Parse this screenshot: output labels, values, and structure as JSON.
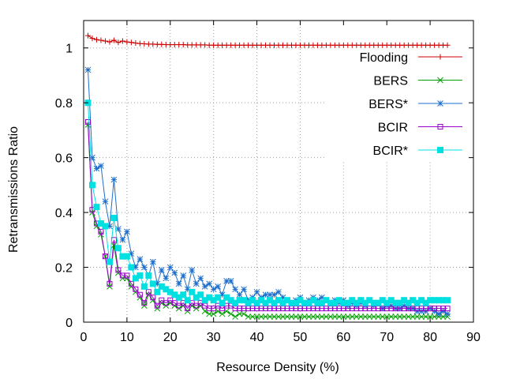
{
  "chart_data": {
    "type": "line",
    "xlabel": "Resource Density (%)",
    "ylabel": "Retransmissions Ratio",
    "xlim": [
      0,
      90
    ],
    "ylim": [
      0,
      1.1
    ],
    "xticks": [
      0,
      10,
      20,
      30,
      40,
      50,
      60,
      70,
      80,
      90
    ],
    "yticks": [
      0,
      0.2,
      0.4,
      0.6,
      0.8,
      1
    ],
    "ytick_labels": [
      "0",
      "0.2",
      "0.4",
      "0.6",
      "0.8",
      "1"
    ],
    "grid": true,
    "legend_position": "top-right",
    "x": [
      1,
      2,
      3,
      4,
      5,
      6,
      7,
      8,
      9,
      10,
      11,
      12,
      13,
      14,
      15,
      16,
      17,
      18,
      19,
      20,
      21,
      22,
      23,
      24,
      25,
      26,
      27,
      28,
      29,
      30,
      31,
      32,
      33,
      34,
      35,
      36,
      37,
      38,
      39,
      40,
      41,
      42,
      43,
      44,
      45,
      46,
      47,
      48,
      49,
      50,
      51,
      52,
      53,
      54,
      55,
      56,
      57,
      58,
      59,
      60,
      61,
      62,
      63,
      64,
      65,
      66,
      67,
      68,
      69,
      70,
      71,
      72,
      73,
      74,
      75,
      76,
      77,
      78,
      79,
      80,
      81,
      82,
      83,
      84
    ],
    "series": [
      {
        "name": "Flooding",
        "color": "#cc0000",
        "marker": "plus",
        "values": [
          1.045,
          1.035,
          1.03,
          1.028,
          1.025,
          1.022,
          1.028,
          1.02,
          1.025,
          1.022,
          1.02,
          1.018,
          1.016,
          1.015,
          1.014,
          1.014,
          1.013,
          1.013,
          1.012,
          1.012,
          1.012,
          1.012,
          1.012,
          1.011,
          1.011,
          1.011,
          1.011,
          1.011,
          1.01,
          1.01,
          1.01,
          1.01,
          1.01,
          1.01,
          1.01,
          1.01,
          1.01,
          1.01,
          1.01,
          1.01,
          1.01,
          1.01,
          1.01,
          1.01,
          1.01,
          1.01,
          1.01,
          1.01,
          1.01,
          1.01,
          1.01,
          1.01,
          1.01,
          1.01,
          1.01,
          1.01,
          1.01,
          1.01,
          1.01,
          1.01,
          1.01,
          1.01,
          1.01,
          1.01,
          1.01,
          1.01,
          1.01,
          1.01,
          1.01,
          1.01,
          1.01,
          1.01,
          1.01,
          1.01,
          1.01,
          1.01,
          1.01,
          1.01,
          1.01,
          1.01,
          1.01,
          1.01,
          1.01,
          1.01
        ]
      },
      {
        "name": "BERS",
        "color": "#00a000",
        "marker": "x",
        "values": [
          0.72,
          0.4,
          0.35,
          0.32,
          0.24,
          0.13,
          0.28,
          0.18,
          0.16,
          0.16,
          0.13,
          0.11,
          0.09,
          0.06,
          0.1,
          0.08,
          0.05,
          0.07,
          0.06,
          0.07,
          0.06,
          0.05,
          0.06,
          0.04,
          0.06,
          0.05,
          0.06,
          0.04,
          0.03,
          0.03,
          0.04,
          0.03,
          0.04,
          0.03,
          0.02,
          0.03,
          0.03,
          0.02,
          0.02,
          0.02,
          0.02,
          0.02,
          0.02,
          0.02,
          0.02,
          0.02,
          0.02,
          0.02,
          0.02,
          0.02,
          0.02,
          0.02,
          0.02,
          0.02,
          0.02,
          0.02,
          0.02,
          0.02,
          0.02,
          0.02,
          0.02,
          0.02,
          0.02,
          0.02,
          0.02,
          0.02,
          0.02,
          0.02,
          0.02,
          0.02,
          0.02,
          0.02,
          0.02,
          0.02,
          0.02,
          0.02,
          0.02,
          0.02,
          0.02,
          0.02,
          0.02,
          0.02,
          0.02,
          0.02
        ]
      },
      {
        "name": "BERS*",
        "color": "#1e6ecc",
        "marker": "star",
        "values": [
          0.92,
          0.6,
          0.56,
          0.57,
          0.44,
          0.35,
          0.52,
          0.34,
          0.3,
          0.33,
          0.25,
          0.2,
          0.23,
          0.2,
          0.17,
          0.22,
          0.14,
          0.19,
          0.16,
          0.2,
          0.18,
          0.14,
          0.17,
          0.12,
          0.19,
          0.14,
          0.16,
          0.13,
          0.14,
          0.12,
          0.13,
          0.1,
          0.15,
          0.15,
          0.12,
          0.1,
          0.12,
          0.08,
          0.09,
          0.11,
          0.09,
          0.1,
          0.1,
          0.1,
          0.11,
          0.09,
          0.08,
          0.07,
          0.08,
          0.09,
          0.07,
          0.08,
          0.09,
          0.08,
          0.09,
          0.08,
          0.07,
          0.08,
          0.07,
          0.08,
          0.06,
          0.07,
          0.06,
          0.07,
          0.06,
          0.08,
          0.06,
          0.07,
          0.05,
          0.06,
          0.06,
          0.05,
          0.05,
          0.06,
          0.05,
          0.05,
          0.04,
          0.04,
          0.04,
          0.05,
          0.04,
          0.03,
          0.04,
          0.03
        ]
      },
      {
        "name": "BCIR",
        "color": "#9900cc",
        "marker": "square-open",
        "values": [
          0.73,
          0.41,
          0.36,
          0.33,
          0.24,
          0.14,
          0.3,
          0.19,
          0.17,
          0.17,
          0.14,
          0.12,
          0.1,
          0.07,
          0.11,
          0.09,
          0.06,
          0.08,
          0.07,
          0.08,
          0.07,
          0.06,
          0.07,
          0.05,
          0.07,
          0.06,
          0.07,
          0.06,
          0.05,
          0.05,
          0.06,
          0.05,
          0.06,
          0.06,
          0.05,
          0.05,
          0.05,
          0.05,
          0.05,
          0.05,
          0.05,
          0.05,
          0.05,
          0.05,
          0.05,
          0.05,
          0.05,
          0.05,
          0.05,
          0.05,
          0.05,
          0.05,
          0.05,
          0.05,
          0.05,
          0.05,
          0.05,
          0.05,
          0.05,
          0.05,
          0.05,
          0.05,
          0.05,
          0.05,
          0.05,
          0.05,
          0.05,
          0.05,
          0.05,
          0.05,
          0.05,
          0.05,
          0.05,
          0.05,
          0.05,
          0.05,
          0.05,
          0.05,
          0.05,
          0.05,
          0.05,
          0.05,
          0.05,
          0.05
        ]
      },
      {
        "name": "BCIR*",
        "color": "#00e0e0",
        "marker": "square-filled",
        "values": [
          0.8,
          0.5,
          0.42,
          0.36,
          0.35,
          0.22,
          0.38,
          0.27,
          0.24,
          0.24,
          0.2,
          0.16,
          0.17,
          0.13,
          0.17,
          0.14,
          0.11,
          0.13,
          0.12,
          0.11,
          0.1,
          0.09,
          0.1,
          0.08,
          0.11,
          0.09,
          0.1,
          0.08,
          0.09,
          0.08,
          0.09,
          0.07,
          0.09,
          0.08,
          0.07,
          0.08,
          0.08,
          0.07,
          0.08,
          0.07,
          0.08,
          0.07,
          0.08,
          0.07,
          0.08,
          0.07,
          0.08,
          0.07,
          0.07,
          0.08,
          0.07,
          0.07,
          0.08,
          0.07,
          0.07,
          0.08,
          0.07,
          0.07,
          0.08,
          0.07,
          0.07,
          0.08,
          0.07,
          0.08,
          0.07,
          0.08,
          0.07,
          0.07,
          0.08,
          0.07,
          0.08,
          0.07,
          0.07,
          0.08,
          0.07,
          0.08,
          0.07,
          0.08,
          0.07,
          0.08,
          0.08,
          0.08,
          0.08,
          0.08
        ]
      }
    ]
  }
}
